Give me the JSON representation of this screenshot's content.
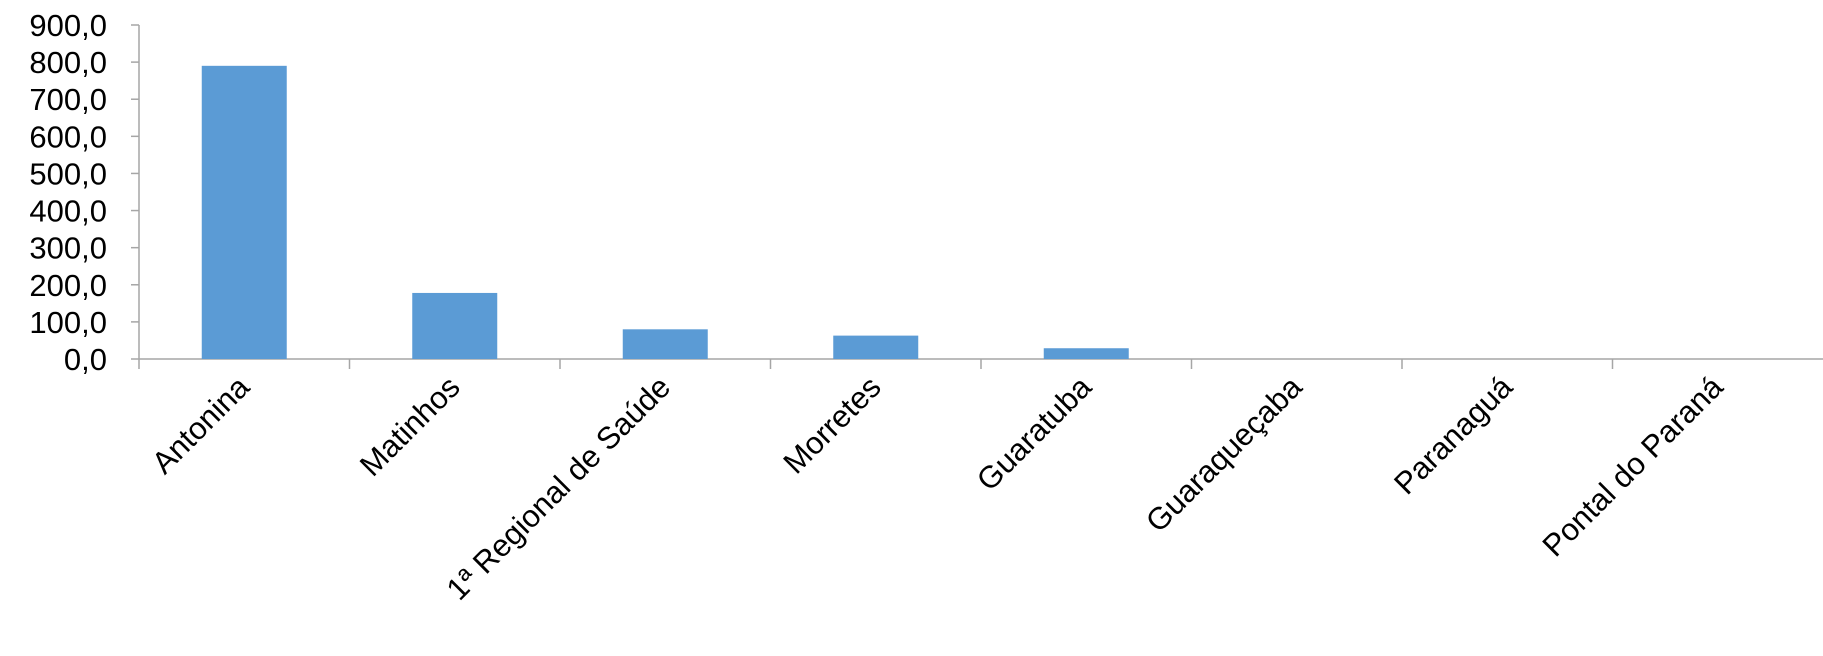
{
  "chart_data": {
    "type": "bar",
    "title": "",
    "xlabel": "",
    "ylabel": "",
    "categories": [
      "Antonina",
      "Matinhos",
      "1ª Regional de Saúde",
      "Morretes",
      "Guaratuba",
      "Guaraqueçaba",
      "Paranaguá",
      "Pontal do Paraná"
    ],
    "values": [
      790,
      178,
      80,
      63,
      29,
      0,
      0,
      0
    ],
    "ylim": [
      0,
      900
    ],
    "y_ticks": [
      "0,0",
      "100,0",
      "200,0",
      "300,0",
      "400,0",
      "500,0",
      "600,0",
      "700,0",
      "800,0",
      "900,0"
    ],
    "grid": false,
    "legend": "none",
    "bar_color": "#5b9bd5",
    "axis_color": "#a6a6a6"
  }
}
